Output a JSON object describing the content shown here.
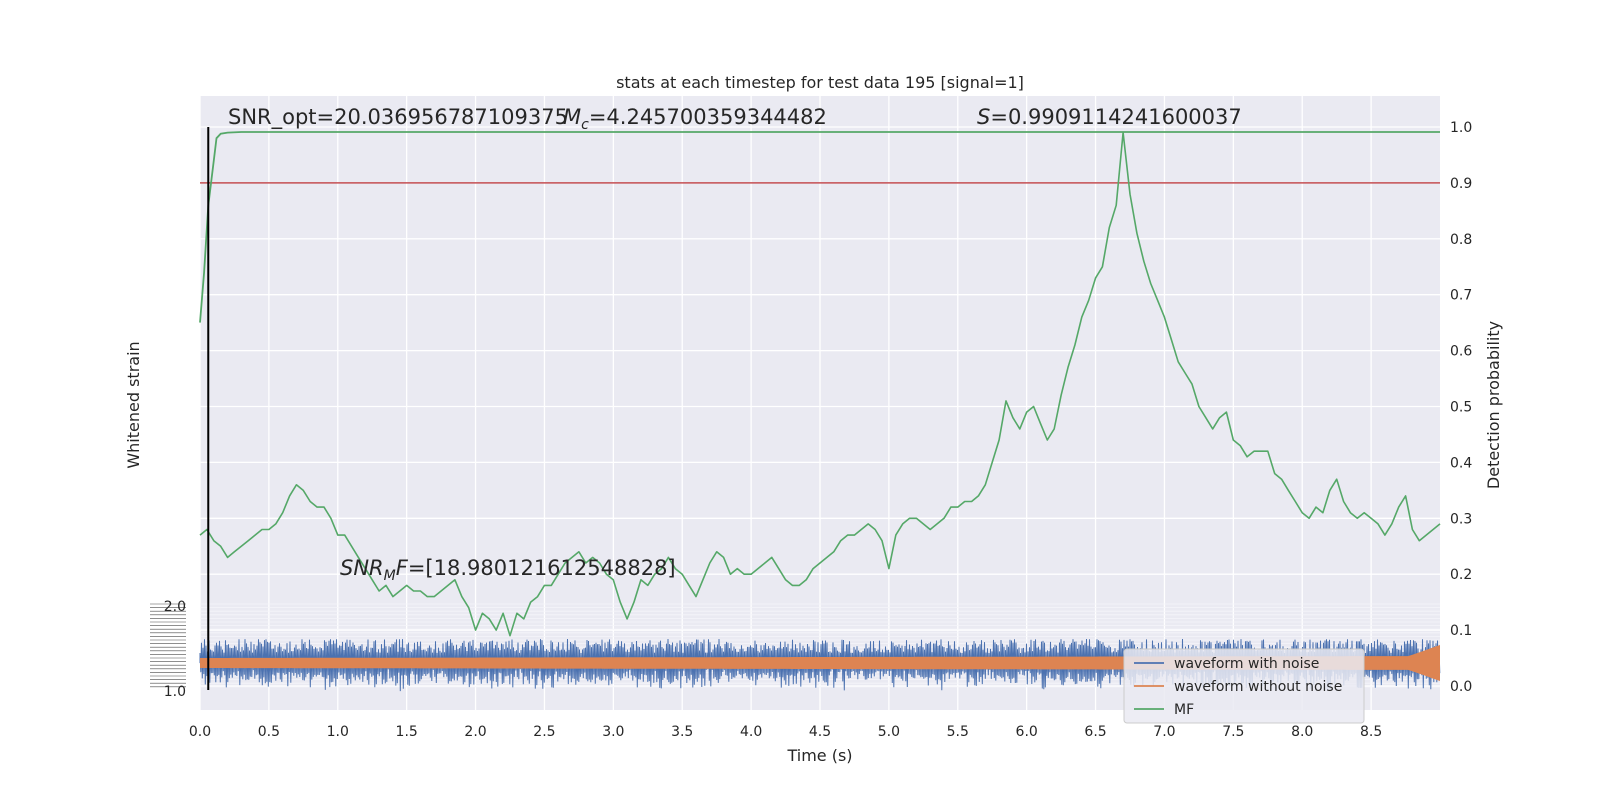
{
  "chart_data": {
    "type": "line",
    "title": "stats at each timestep for test data 195 [signal=1]",
    "xlabel": "Time (s)",
    "ylabel_left": "Whitened strain",
    "ylabel_right": "Detection probability",
    "xlim": [
      0.0,
      9.0
    ],
    "ylim_right": [
      -0.05,
      1.04
    ],
    "x_ticks": [
      "0.0",
      "0.5",
      "1.0",
      "1.5",
      "2.0",
      "2.5",
      "3.0",
      "3.5",
      "4.0",
      "4.5",
      "5.0",
      "5.5",
      "6.0",
      "6.5",
      "7.0",
      "7.5",
      "8.0",
      "8.5"
    ],
    "x_tick_values": [
      0.0,
      0.5,
      1.0,
      1.5,
      2.0,
      2.5,
      3.0,
      3.5,
      4.0,
      4.5,
      5.0,
      5.5,
      6.0,
      6.5,
      7.0,
      7.5,
      8.0,
      8.5
    ],
    "y_right_ticks": [
      "0.0",
      "0.1",
      "0.2",
      "0.3",
      "0.4",
      "0.5",
      "0.6",
      "0.7",
      "0.8",
      "0.9",
      "1.0"
    ],
    "y_right_tick_values": [
      0.0,
      0.1,
      0.2,
      0.3,
      0.4,
      0.5,
      0.6,
      0.7,
      0.8,
      0.9,
      1.0
    ],
    "y_left_ticks": [
      "2.0",
      "1.0"
    ],
    "grid": true,
    "legend_position": "lower-right",
    "threshold": 0.9,
    "vline_x": 0.06,
    "annotations": {
      "snr_opt": "SNR_opt=20.036956787109375",
      "mc": "=4.245700359344482",
      "s": "=0.9909114241600037",
      "snr_mf": "=[18.980121612548828]"
    },
    "series": [
      {
        "name": "waveform with noise",
        "color": "#4c72b0",
        "style": "noise band around strain 0"
      },
      {
        "name": "waveform without noise",
        "color": "#dd8452",
        "style": "thin chirp band around strain 0, growing near 8.9 s"
      },
      {
        "name": "MF",
        "color": "#55a868",
        "x": [
          0.0,
          0.05,
          0.1,
          0.15,
          0.2,
          0.25,
          0.3,
          0.35,
          0.4,
          0.45,
          0.5,
          0.55,
          0.6,
          0.65,
          0.7,
          0.75,
          0.8,
          0.85,
          0.9,
          0.95,
          1.0,
          1.05,
          1.1,
          1.15,
          1.2,
          1.25,
          1.3,
          1.35,
          1.4,
          1.45,
          1.5,
          1.55,
          1.6,
          1.65,
          1.7,
          1.75,
          1.8,
          1.85,
          1.9,
          1.95,
          2.0,
          2.05,
          2.1,
          2.15,
          2.2,
          2.25,
          2.3,
          2.35,
          2.4,
          2.45,
          2.5,
          2.55,
          2.6,
          2.65,
          2.7,
          2.75,
          2.8,
          2.85,
          2.9,
          2.95,
          3.0,
          3.05,
          3.1,
          3.15,
          3.2,
          3.25,
          3.3,
          3.35,
          3.4,
          3.45,
          3.5,
          3.55,
          3.6,
          3.65,
          3.7,
          3.75,
          3.8,
          3.85,
          3.9,
          3.95,
          4.0,
          4.05,
          4.1,
          4.15,
          4.2,
          4.25,
          4.3,
          4.35,
          4.4,
          4.45,
          4.5,
          4.55,
          4.6,
          4.65,
          4.7,
          4.75,
          4.8,
          4.85,
          4.9,
          4.95,
          5.0,
          5.05,
          5.1,
          5.15,
          5.2,
          5.25,
          5.3,
          5.35,
          5.4,
          5.45,
          5.5,
          5.55,
          5.6,
          5.65,
          5.7,
          5.75,
          5.8,
          5.85,
          5.9,
          5.95,
          6.0,
          6.05,
          6.1,
          6.15,
          6.2,
          6.25,
          6.3,
          6.35,
          6.4,
          6.45,
          6.5,
          6.55,
          6.6,
          6.65,
          6.7,
          6.75,
          6.8,
          6.85,
          6.9,
          6.95,
          7.0,
          7.05,
          7.1,
          7.15,
          7.2,
          7.25,
          7.3,
          7.35,
          7.4,
          7.45,
          7.5,
          7.55,
          7.6,
          7.65,
          7.7,
          7.75,
          7.8,
          7.85,
          7.9,
          7.95,
          8.0,
          8.05,
          8.1,
          8.15,
          8.2,
          8.25,
          8.3,
          8.35,
          8.4,
          8.45,
          8.5,
          8.55,
          8.6,
          8.65,
          8.7,
          8.75,
          8.8,
          8.85,
          8.9,
          8.95,
          9.0
        ],
        "y": [
          0.27,
          0.28,
          0.26,
          0.25,
          0.23,
          0.24,
          0.25,
          0.26,
          0.27,
          0.28,
          0.28,
          0.29,
          0.31,
          0.34,
          0.36,
          0.35,
          0.33,
          0.32,
          0.32,
          0.3,
          0.27,
          0.27,
          0.25,
          0.23,
          0.21,
          0.19,
          0.17,
          0.18,
          0.16,
          0.17,
          0.18,
          0.17,
          0.17,
          0.16,
          0.16,
          0.17,
          0.18,
          0.19,
          0.16,
          0.14,
          0.1,
          0.13,
          0.12,
          0.1,
          0.13,
          0.09,
          0.13,
          0.12,
          0.15,
          0.16,
          0.18,
          0.18,
          0.2,
          0.22,
          0.23,
          0.24,
          0.22,
          0.23,
          0.22,
          0.2,
          0.19,
          0.15,
          0.12,
          0.15,
          0.19,
          0.18,
          0.2,
          0.21,
          0.23,
          0.21,
          0.2,
          0.18,
          0.16,
          0.19,
          0.22,
          0.24,
          0.23,
          0.2,
          0.21,
          0.2,
          0.2,
          0.21,
          0.22,
          0.23,
          0.21,
          0.19,
          0.18,
          0.18,
          0.19,
          0.21,
          0.22,
          0.23,
          0.24,
          0.26,
          0.27,
          0.27,
          0.28,
          0.29,
          0.28,
          0.26,
          0.21,
          0.27,
          0.29,
          0.3,
          0.3,
          0.29,
          0.28,
          0.29,
          0.3,
          0.32,
          0.32,
          0.33,
          0.33,
          0.34,
          0.36,
          0.4,
          0.44,
          0.51,
          0.48,
          0.46,
          0.49,
          0.5,
          0.47,
          0.44,
          0.46,
          0.52,
          0.57,
          0.61,
          0.66,
          0.69,
          0.73,
          0.75,
          0.82,
          0.86,
          0.99,
          0.88,
          0.81,
          0.76,
          0.72,
          0.69,
          0.66,
          0.62,
          0.58,
          0.56,
          0.54,
          0.5,
          0.48,
          0.46,
          0.48,
          0.49,
          0.44,
          0.43,
          0.41,
          0.42,
          0.42,
          0.42,
          0.38,
          0.37,
          0.35,
          0.33,
          0.31,
          0.3,
          0.32,
          0.31,
          0.35,
          0.37,
          0.33,
          0.31,
          0.3,
          0.31,
          0.3,
          0.29,
          0.27,
          0.29,
          0.32,
          0.34,
          0.28,
          0.26,
          0.27,
          0.28,
          0.29
        ]
      }
    ],
    "detection_prob_x": [
      0.0,
      0.03,
      0.06,
      0.1,
      0.12,
      0.15,
      0.2,
      0.3,
      9.0
    ],
    "detection_prob_y": [
      0.65,
      0.74,
      0.86,
      0.94,
      0.98,
      0.988,
      0.99,
      0.991,
      0.991
    ]
  }
}
